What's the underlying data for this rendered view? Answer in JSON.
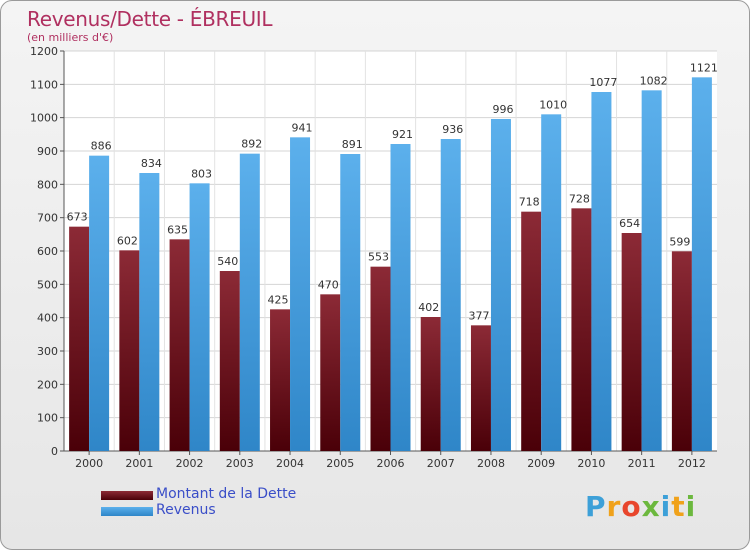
{
  "header": {
    "title": "Revenus/Dette - ÉBREUIL",
    "subtitle": "(en milliers d'€)"
  },
  "chart_data": {
    "type": "bar",
    "categories": [
      "2000",
      "2001",
      "2002",
      "2003",
      "2004",
      "2005",
      "2006",
      "2007",
      "2008",
      "2009",
      "2010",
      "2011",
      "2012"
    ],
    "series": [
      {
        "name": "Montant de la Dette",
        "color": "#7a1020",
        "values": [
          673,
          602,
          635,
          540,
          425,
          470,
          553,
          402,
          377,
          718,
          728,
          654,
          599
        ]
      },
      {
        "name": "Revenus",
        "color": "#4fa6e4",
        "values": [
          886,
          834,
          803,
          892,
          941,
          891,
          921,
          936,
          996,
          1010,
          1077,
          1082,
          1121
        ]
      }
    ],
    "ylim": [
      0,
      1200
    ],
    "yticks": [
      0,
      100,
      200,
      300,
      400,
      500,
      600,
      700,
      800,
      900,
      1000,
      1100,
      1200
    ],
    "grid": true,
    "legend_position": "bottom-left"
  },
  "logo": {
    "letters": [
      "P",
      "r",
      "o",
      "x",
      "i",
      "t",
      "i"
    ]
  }
}
